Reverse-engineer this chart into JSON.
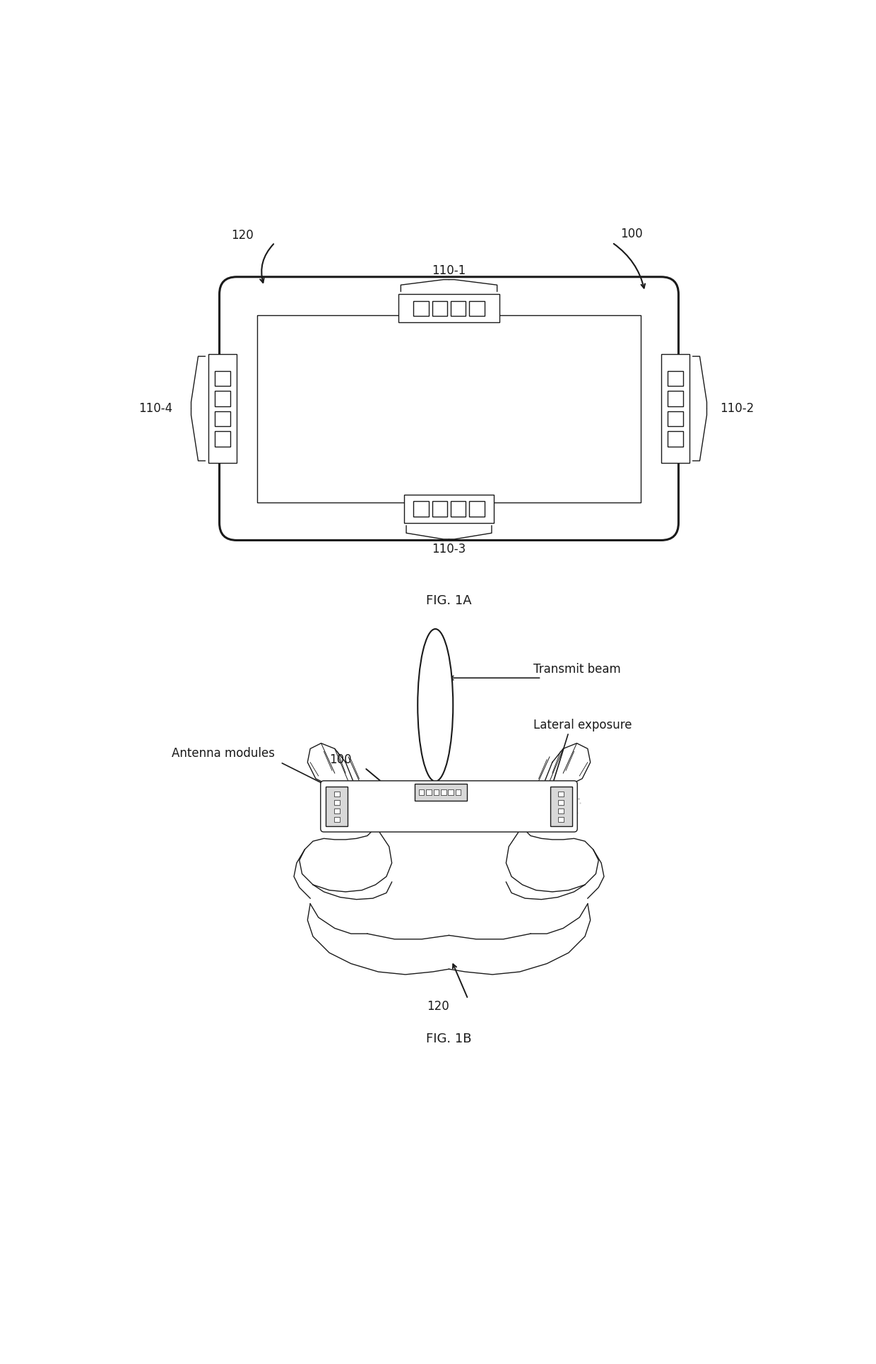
{
  "fig_width": 12.4,
  "fig_height": 19.3,
  "bg_color": "#ffffff",
  "line_color": "#1a1a1a",
  "text_color": "#1a1a1a",
  "fig1a_title": "FIG. 1A",
  "fig1b_title": "FIG. 1B",
  "labels": {
    "100_top": "100",
    "120_top": "120",
    "110_1": "110-1",
    "110_2": "110-2",
    "110_3": "110-3",
    "110_4": "110-4",
    "100_bot": "100",
    "120_bot": "120",
    "antenna_modules": "Antenna modules",
    "transmit_beam": "Transmit beam",
    "lateral_exposure": "Lateral exposure"
  },
  "font_size_label": 12,
  "font_size_fig": 13
}
